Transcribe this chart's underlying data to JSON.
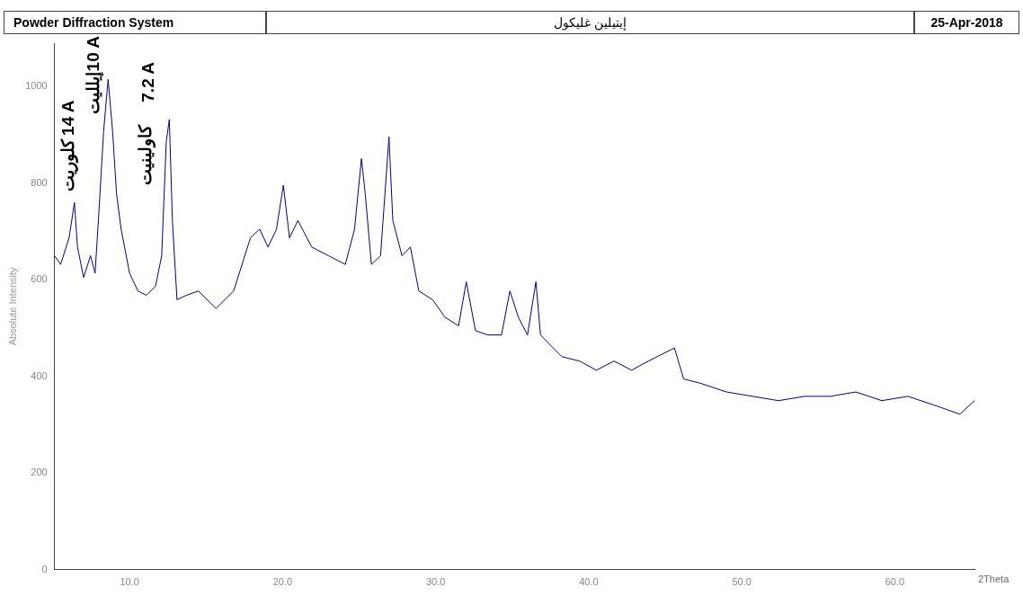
{
  "chart_data": {
    "type": "line",
    "title": "Powder Diffraction System",
    "subtitle": "إيتيلين غليكول",
    "xlabel": "2Theta",
    "ylabel": "Absolute Intensity",
    "annotations": [
      "25-Apr-2018",
      "14 A",
      "كلوريت",
      "10 A",
      "إيلليت",
      "7.2 A",
      "كاولينيت"
    ],
    "xlim": [
      5.1,
      65.2
    ],
    "ylim": [
      0,
      1090
    ],
    "xticks": [
      {
        "value": 10,
        "label": "10.0"
      },
      {
        "value": 20,
        "label": "20.0"
      },
      {
        "value": 30,
        "label": "30.0"
      },
      {
        "value": 40,
        "label": "40.0"
      },
      {
        "value": 50,
        "label": "50.0"
      },
      {
        "value": 60,
        "label": "60.0"
      }
    ],
    "yticks": [
      0,
      200,
      400,
      600,
      800,
      1000
    ],
    "grid": false,
    "legend": false,
    "marker": "none",
    "line_style": "solid",
    "series": [
      {
        "color": "#00008b",
        "x": [
          5.1,
          5.5,
          6.05,
          6.4,
          6.6,
          7.0,
          7.45,
          7.75,
          8.0,
          8.3,
          8.6,
          8.9,
          9.15,
          9.45,
          10.0,
          10.55,
          11.1,
          11.7,
          12.1,
          12.4,
          12.6,
          12.8,
          13.1,
          13.7,
          14.5,
          15.65,
          16.8,
          17.9,
          18.5,
          19.05,
          19.6,
          20.05,
          20.45,
          21.0,
          21.9,
          23.0,
          24.1,
          24.7,
          25.15,
          25.4,
          25.8,
          26.4,
          26.95,
          27.2,
          27.8,
          28.35,
          28.9,
          29.8,
          30.6,
          31.5,
          32.0,
          32.6,
          33.4,
          34.3,
          34.85,
          35.4,
          36.0,
          36.55,
          36.85,
          37.4,
          38.25,
          39.4,
          40.5,
          41.65,
          42.8,
          43.9,
          45.6,
          46.2,
          47.3,
          49.0,
          50.7,
          52.4,
          54.1,
          55.8,
          57.45,
          59.15,
          60.85,
          62.55,
          64.25,
          65.2
        ],
        "values": [
          650,
          632,
          687,
          760,
          668,
          605,
          650,
          614,
          741,
          905,
          1015,
          905,
          778,
          705,
          614,
          577,
          568,
          587,
          650,
          887,
          932,
          723,
          559,
          568,
          577,
          541,
          577,
          687,
          705,
          668,
          705,
          796,
          687,
          723,
          668,
          650,
          632,
          705,
          851,
          778,
          632,
          650,
          896,
          723,
          650,
          668,
          577,
          559,
          523,
          505,
          596,
          495,
          486,
          486,
          577,
          523,
          486,
          596,
          486,
          468,
          441,
          432,
          413,
          432,
          413,
          432,
          459,
          395,
          386,
          368,
          359,
          350,
          359,
          359,
          368,
          350,
          359,
          341,
          322,
          350
        ]
      }
    ]
  }
}
